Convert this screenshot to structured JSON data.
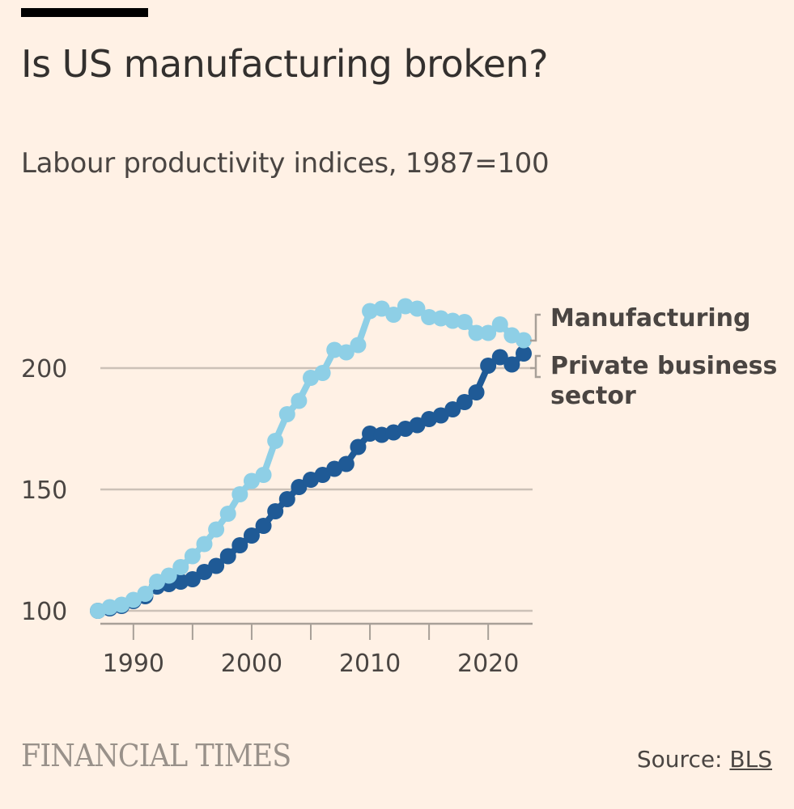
{
  "header": {
    "title": "Is US manufacturing broken?",
    "subtitle": "Labour productivity indices, 1987=100"
  },
  "footer": {
    "logo": "FINANCIAL TIMES",
    "source_prefix": "Source: ",
    "source_link": "BLS"
  },
  "colors": {
    "background": "#fff1e5",
    "manufacturing": "#8ecfe6",
    "private_business": "#1f5a96",
    "gridline": "#ccc1b7",
    "axis": "#a8a098"
  },
  "chart_data": {
    "type": "line",
    "title": "Is US manufacturing broken?",
    "subtitle": "Labour productivity indices, 1987=100",
    "xlabel": "",
    "ylabel": "",
    "xlim": [
      1987,
      2023
    ],
    "ylim": [
      100,
      230
    ],
    "yticks": [
      100,
      150,
      200
    ],
    "ytick_labels": [
      "100",
      "150",
      "200"
    ],
    "xticks": [
      1990,
      1995,
      2000,
      2005,
      2010,
      2015,
      2020
    ],
    "xtick_labels": [
      "1990",
      "",
      "2000",
      "",
      "2010",
      "",
      "2020"
    ],
    "grid": true,
    "legend_position": "right (direct labels at line ends)",
    "x": [
      1987,
      1988,
      1989,
      1990,
      1991,
      1992,
      1993,
      1994,
      1995,
      1996,
      1997,
      1998,
      1999,
      2000,
      2001,
      2002,
      2003,
      2004,
      2005,
      2006,
      2007,
      2008,
      2009,
      2010,
      2011,
      2012,
      2013,
      2014,
      2015,
      2016,
      2017,
      2018,
      2019,
      2020,
      2021,
      2022,
      2023
    ],
    "series": [
      {
        "name": "Manufacturing",
        "values": [
          100,
          101.5,
          102.5,
          104.5,
          107,
          112,
          114.5,
          118,
          122.5,
          127.5,
          133.5,
          140,
          148,
          153.5,
          156,
          170,
          181,
          186.5,
          196,
          198,
          207.5,
          206.5,
          209.5,
          223.5,
          224.5,
          222,
          225.5,
          224.5,
          221,
          220.5,
          219.5,
          219,
          214.5,
          214.5,
          218,
          213.5,
          211.5
        ]
      },
      {
        "name": "Private business sector",
        "values": [
          100,
          101,
          102,
          104,
          106,
          110,
          111,
          112,
          113,
          116,
          118.5,
          122.5,
          127,
          131,
          135,
          141,
          146,
          151,
          154,
          156,
          158.5,
          160.5,
          167.5,
          173,
          172.5,
          173.5,
          175,
          176.5,
          179,
          180.5,
          183,
          186,
          190,
          201,
          204.5,
          201.5,
          206
        ]
      }
    ],
    "legend": [
      "Manufacturing",
      "Private business",
      "sector"
    ]
  }
}
